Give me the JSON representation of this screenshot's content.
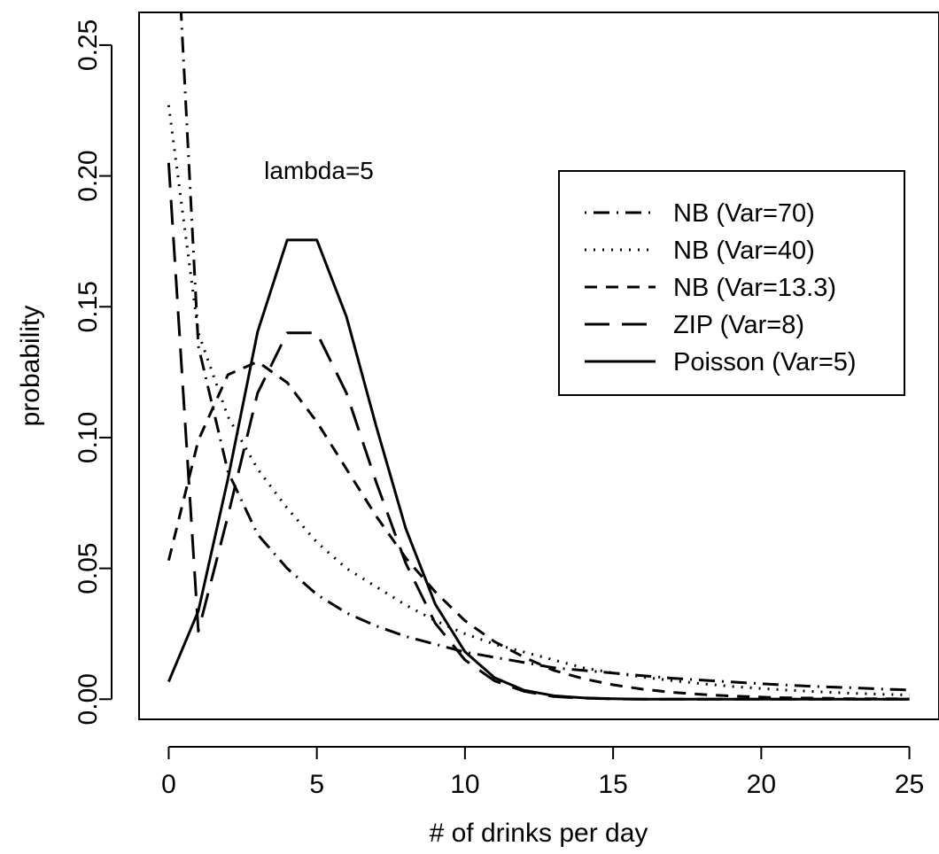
{
  "chart_data": {
    "type": "line",
    "xlabel": "# of drinks per day",
    "ylabel": "probability",
    "annotation": "lambda=5",
    "xlim": [
      -1,
      26
    ],
    "ylim": [
      -0.0077,
      0.2625
    ],
    "xticks": [
      0,
      5,
      10,
      15,
      20,
      25
    ],
    "yticks": [
      0.0,
      0.05,
      0.1,
      0.15,
      0.2,
      0.25
    ],
    "ytick_labels": [
      "0.00",
      "0.05",
      "0.10",
      "0.15",
      "0.20",
      "0.25"
    ],
    "legend_position": "top-right",
    "grid": false,
    "series": [
      {
        "name": "NB (Var=70)",
        "dash": "dashdot",
        "x": [
          0,
          1,
          2,
          3,
          4,
          5,
          6,
          7,
          8,
          9,
          10,
          11,
          12,
          13,
          14,
          15,
          16,
          17,
          18,
          19,
          20,
          21,
          22,
          23,
          24,
          25
        ],
        "values": [
          0.354,
          0.135,
          0.087,
          0.063,
          0.05,
          0.04,
          0.033,
          0.028,
          0.024,
          0.021,
          0.018,
          0.016,
          0.014,
          0.012,
          0.011,
          0.01,
          0.009,
          0.008,
          0.0073,
          0.0066,
          0.0059,
          0.0053,
          0.0048,
          0.0044,
          0.0039,
          0.0035
        ]
      },
      {
        "name": "NB (Var=40)",
        "dash": "dotted",
        "x": [
          0,
          1,
          2,
          3,
          4,
          5,
          6,
          7,
          8,
          9,
          10,
          11,
          12,
          13,
          14,
          15,
          16,
          17,
          18,
          19,
          20,
          21,
          22,
          23,
          24,
          25
        ],
        "values": [
          0.227,
          0.14,
          0.108,
          0.088,
          0.073,
          0.06,
          0.05,
          0.043,
          0.036,
          0.03,
          0.025,
          0.021,
          0.018,
          0.015,
          0.012,
          0.01,
          0.0085,
          0.0071,
          0.0059,
          0.0049,
          0.0041,
          0.0034,
          0.0028,
          0.0023,
          0.0019,
          0.0016
        ]
      },
      {
        "name": "NB (Var=13.3)",
        "dash": "dashed",
        "x": [
          0,
          1,
          2,
          3,
          4,
          5,
          6,
          7,
          8,
          9,
          10,
          11,
          12,
          13,
          14,
          15,
          16,
          17,
          18,
          19,
          20,
          21,
          22,
          23,
          24,
          25
        ],
        "values": [
          0.053,
          0.099,
          0.124,
          0.129,
          0.121,
          0.106,
          0.088,
          0.07,
          0.054,
          0.041,
          0.03,
          0.022,
          0.016,
          0.011,
          0.0078,
          0.0055,
          0.0038,
          0.0026,
          0.0018,
          0.0012,
          0.0008,
          0.0005,
          0.0004,
          0.0002,
          0.0002,
          0.0001
        ]
      },
      {
        "name": "ZIP (Var=8)",
        "dash": "longdash",
        "x": [
          0,
          1,
          2,
          3,
          4,
          5,
          6,
          7,
          8,
          9,
          10,
          11,
          12,
          13,
          14,
          15,
          16,
          17,
          18,
          19,
          20,
          21,
          22,
          23,
          24,
          25
        ],
        "values": [
          0.205,
          0.026,
          0.07,
          0.117,
          0.14,
          0.14,
          0.117,
          0.083,
          0.052,
          0.029,
          0.015,
          0.007,
          0.003,
          0.001,
          0.0004,
          0.0001,
          0.0,
          0.0,
          0.0,
          0.0,
          0.0,
          0.0,
          0.0,
          0.0,
          0.0,
          0.0
        ]
      },
      {
        "name": "Poisson (Var=5)",
        "dash": "solid",
        "x": [
          0,
          1,
          2,
          3,
          4,
          5,
          6,
          7,
          8,
          9,
          10,
          11,
          12,
          13,
          14,
          15,
          16,
          17,
          18,
          19,
          20,
          21,
          22,
          23,
          24,
          25
        ],
        "values": [
          0.0067,
          0.0337,
          0.0842,
          0.1404,
          0.1755,
          0.1755,
          0.1462,
          0.1044,
          0.0653,
          0.0363,
          0.0181,
          0.0082,
          0.0034,
          0.0013,
          0.0005,
          0.0002,
          0.0,
          0.0,
          0.0,
          0.0,
          0.0,
          0.0,
          0.0,
          0.0,
          0.0,
          0.0
        ]
      }
    ]
  }
}
